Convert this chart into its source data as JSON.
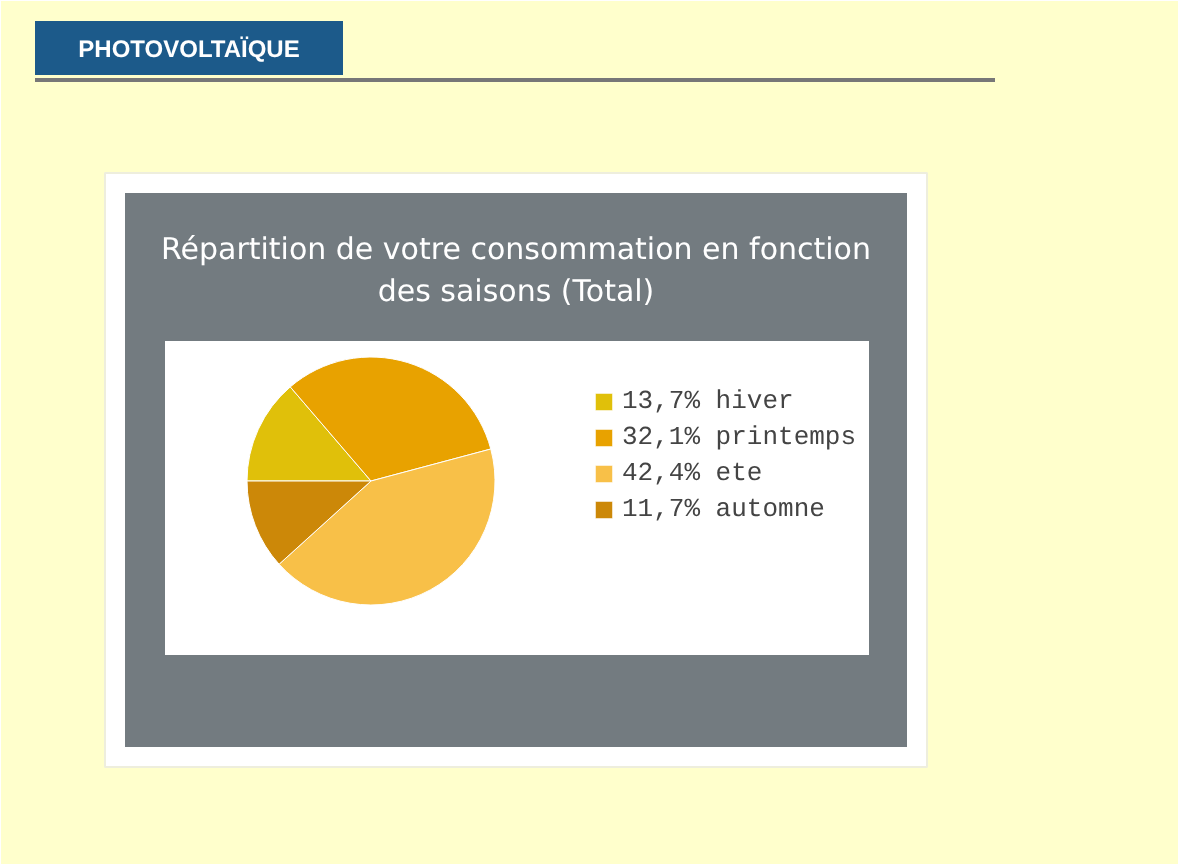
{
  "chart_data": {
    "type": "pie",
    "title": "Répartition de votre consommation en fonction des saisons (Total)",
    "categories": [
      "hiver",
      "printemps",
      "ete",
      "automne"
    ],
    "values": [
      13.7,
      32.1,
      42.4,
      11.7
    ],
    "colors": [
      "#e0c00a",
      "#e8a200",
      "#f8c048",
      "#cc8808"
    ],
    "value_labels": [
      "13,7%",
      "32,1%",
      "42,4%",
      "11,7%"
    ],
    "legend": "right",
    "annotations": [
      "PHOTOVOLTAÏQUE"
    ]
  }
}
